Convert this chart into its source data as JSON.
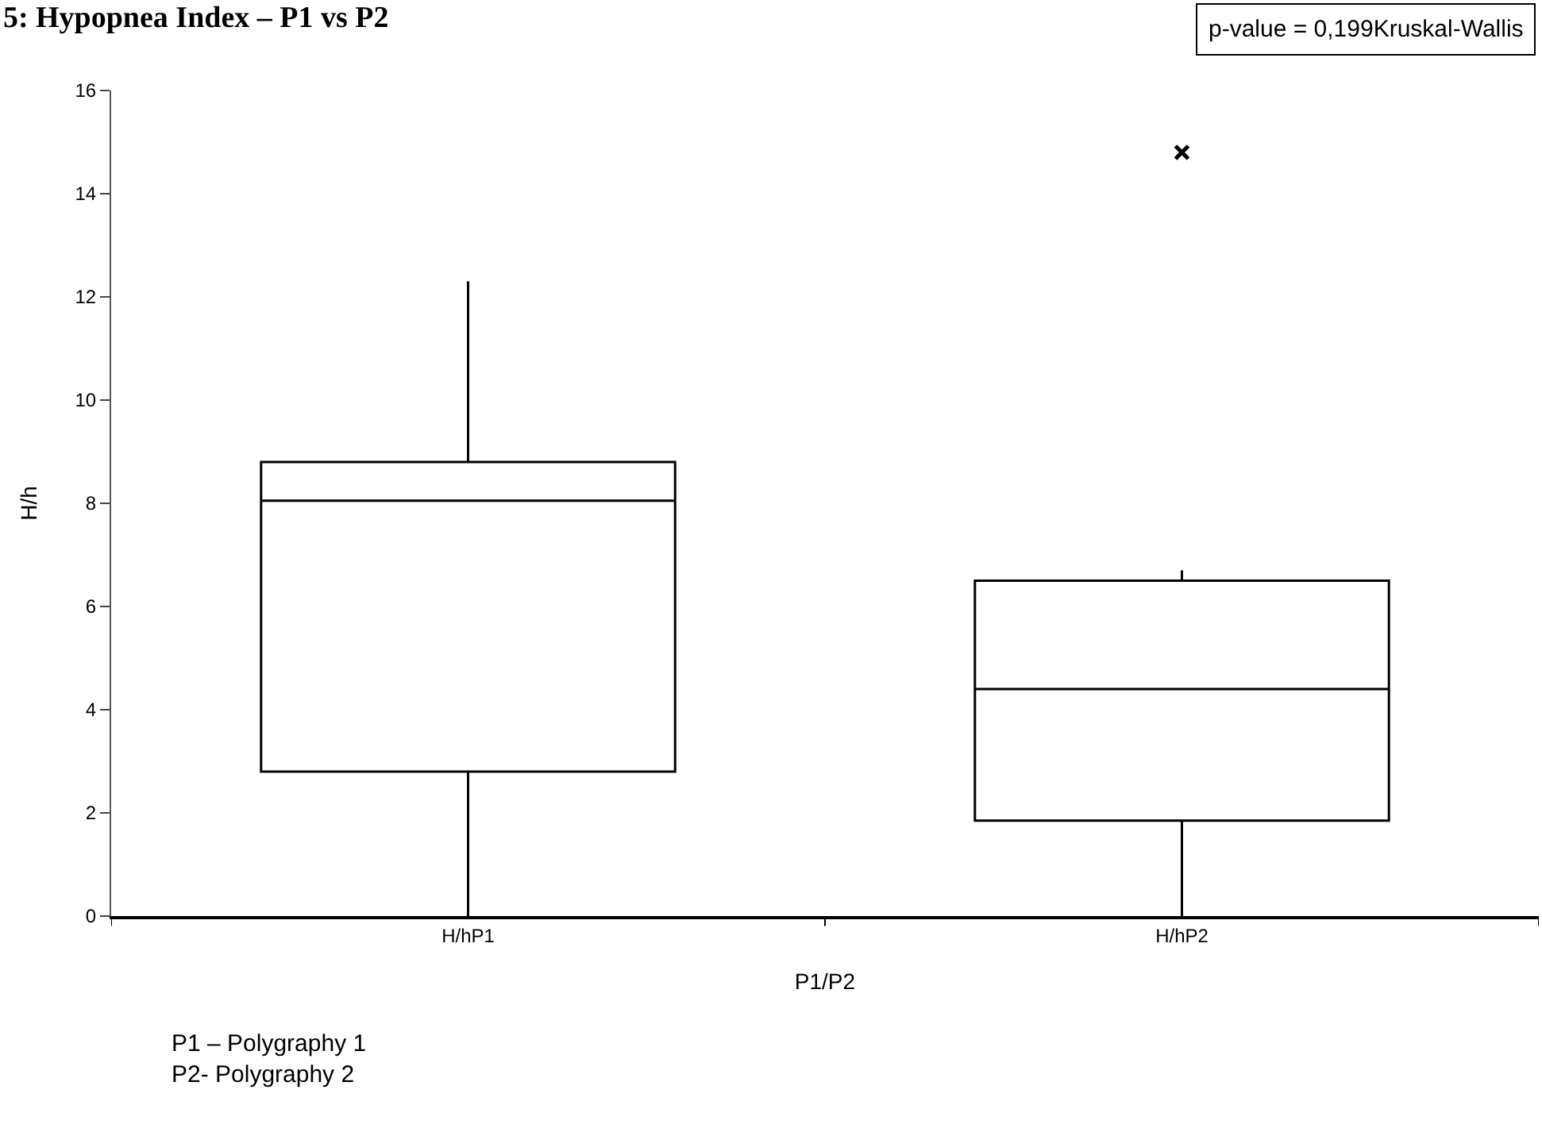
{
  "chart_data": {
    "type": "box",
    "title": "5: Hypopnea Index – P1 vs P2",
    "xlabel": "P1/P2",
    "ylabel": "H/h",
    "categories": [
      "H/hP1",
      "H/hP2"
    ],
    "boxes": [
      {
        "low": 0,
        "q1": 2.8,
        "median": 8.05,
        "q3": 8.8,
        "high": 12.3
      },
      {
        "low": 0,
        "q1": 1.85,
        "median": 4.4,
        "q3": 6.5,
        "high": 6.7,
        "outliers": [
          14.8
        ]
      }
    ],
    "ylim": [
      0,
      16
    ],
    "yticks": [
      0,
      2,
      4,
      6,
      8,
      10,
      12,
      14,
      16
    ],
    "annotations": [
      "p-value = 0,199Kruskal-Wallis",
      "P1 – Polygraphy 1",
      "P2- Polygraphy 2"
    ]
  }
}
